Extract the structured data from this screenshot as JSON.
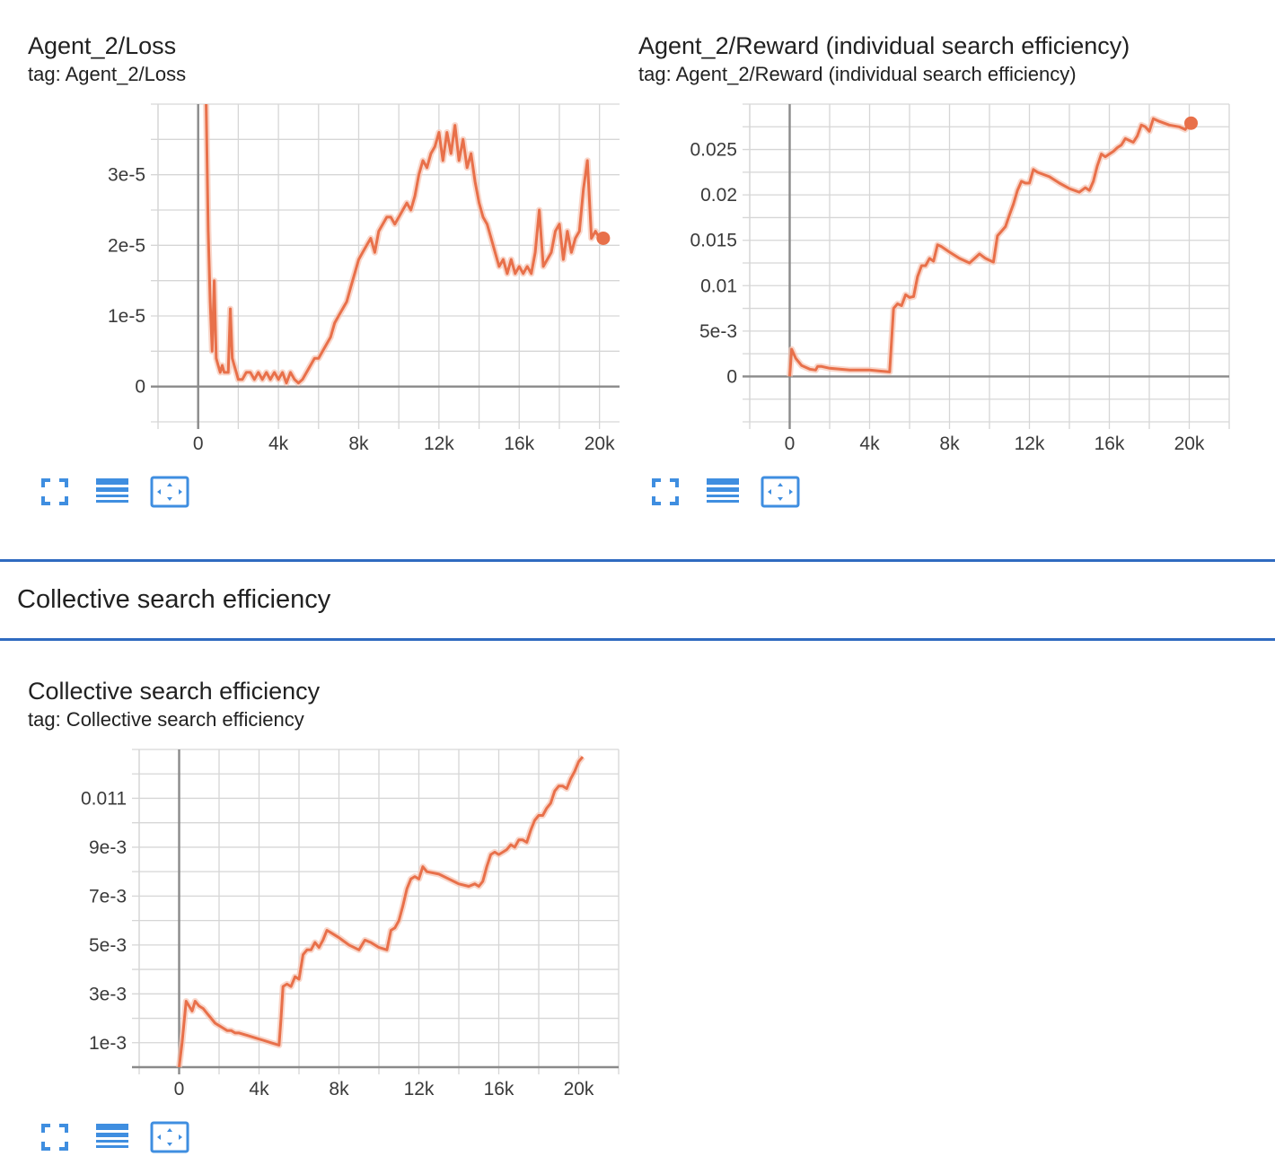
{
  "colors": {
    "accent": "#e8704a",
    "accent_light": "#f6c6b5",
    "grid": "#d6d6d6",
    "axis_zero": "#8a8a8a",
    "section_rule": "#2f6ac0",
    "toolbar_icon": "#3f8ee0"
  },
  "toolbar_icons": [
    "fullscreen-icon",
    "data-table-icon",
    "fit-domain-icon"
  ],
  "section": {
    "title": "Collective search efficiency"
  },
  "cards": [
    {
      "title": "Agent_2/Loss",
      "tag": "tag: Agent_2/Loss"
    },
    {
      "title": "Agent_2/Reward (individual search efficiency)",
      "tag": "tag: Agent_2/Reward (individual search efficiency)"
    },
    {
      "title": "Collective search efficiency",
      "tag": "tag: Collective search efficiency"
    }
  ],
  "chart_data": [
    {
      "type": "line",
      "title": "Agent_2/Loss",
      "xlim": [
        -2000,
        21000
      ],
      "ylim": [
        -5e-06,
        4e-05
      ],
      "xticks": [
        0,
        4000,
        8000,
        12000,
        16000,
        20000
      ],
      "xtick_labels": [
        "0",
        "4k",
        "8k",
        "12k",
        "16k",
        "20k"
      ],
      "yticks": [
        0,
        1e-05,
        2e-05,
        3e-05
      ],
      "ytick_labels": [
        "0",
        "1e-5",
        "2e-5",
        "3e-5"
      ],
      "grid": true,
      "series": [
        {
          "x": [
            400,
            500,
            600,
            700,
            800,
            900,
            1000,
            1100,
            1200,
            1300,
            1500,
            1600,
            1700,
            1800,
            1900,
            2000,
            2200,
            2400,
            2600,
            2800,
            3000,
            3200,
            3400,
            3600,
            3800,
            4000,
            4200,
            4400,
            4600,
            4800,
            5000,
            5200,
            5400,
            5600,
            5800,
            6000,
            6200,
            6400,
            6600,
            6800,
            7000,
            7200,
            7400,
            7600,
            7800,
            8000,
            8200,
            8400,
            8600,
            8800,
            9000,
            9200,
            9400,
            9600,
            9800,
            10000,
            10200,
            10400,
            10600,
            10800,
            11000,
            11200,
            11400,
            11600,
            11800,
            12000,
            12200,
            12400,
            12600,
            12800,
            13000,
            13200,
            13400,
            13600,
            13800,
            14000,
            14200,
            14400,
            14600,
            14800,
            15000,
            15200,
            15400,
            15600,
            15800,
            16000,
            16200,
            16400,
            16600,
            16800,
            17000,
            17200,
            17400,
            17600,
            17800,
            18000,
            18200,
            18400,
            18600,
            18800,
            19000,
            19200,
            19400,
            19600,
            19800,
            20000,
            20100
          ],
          "y": [
            4e-05,
            2.2e-05,
            1.2e-05,
            5e-06,
            1.5e-05,
            4e-06,
            3e-06,
            2e-06,
            3e-06,
            2e-06,
            2e-06,
            1.1e-05,
            4e-06,
            3e-06,
            2e-06,
            1e-06,
            1e-06,
            2e-06,
            2e-06,
            1e-06,
            2e-06,
            1e-06,
            2e-06,
            1e-06,
            2e-06,
            1e-06,
            2e-06,
            5e-07,
            2e-06,
            1e-06,
            5e-07,
            1e-06,
            2e-06,
            3e-06,
            4e-06,
            4e-06,
            5e-06,
            6e-06,
            7e-06,
            9e-06,
            1e-05,
            1.1e-05,
            1.2e-05,
            1.4e-05,
            1.6e-05,
            1.8e-05,
            1.9e-05,
            2e-05,
            2.1e-05,
            1.9e-05,
            2.2e-05,
            2.3e-05,
            2.4e-05,
            2.4e-05,
            2.3e-05,
            2.4e-05,
            2.5e-05,
            2.6e-05,
            2.5e-05,
            2.7e-05,
            3e-05,
            3.2e-05,
            3.1e-05,
            3.3e-05,
            3.4e-05,
            3.6e-05,
            3.2e-05,
            3.6e-05,
            3.3e-05,
            3.7e-05,
            3.2e-05,
            3.5e-05,
            3.1e-05,
            3.3e-05,
            2.9e-05,
            2.6e-05,
            2.4e-05,
            2.3e-05,
            2.1e-05,
            1.9e-05,
            1.7e-05,
            1.8e-05,
            1.6e-05,
            1.8e-05,
            1.6e-05,
            1.7e-05,
            1.6e-05,
            1.7e-05,
            1.6e-05,
            1.9e-05,
            2.5e-05,
            1.7e-05,
            1.8e-05,
            1.9e-05,
            2.2e-05,
            2.3e-05,
            1.8e-05,
            2.2e-05,
            1.9e-05,
            2.1e-05,
            2.2e-05,
            2.8e-05,
            3.2e-05,
            2.1e-05,
            2.2e-05,
            2.1e-05,
            2.1e-05
          ]
        }
      ]
    },
    {
      "type": "line",
      "title": "Agent_2/Reward (individual search efficiency)",
      "xlim": [
        -2000,
        22000
      ],
      "ylim": [
        -0.005,
        0.03
      ],
      "xticks": [
        0,
        4000,
        8000,
        12000,
        16000,
        20000
      ],
      "xtick_labels": [
        "0",
        "4k",
        "8k",
        "12k",
        "16k",
        "20k"
      ],
      "yticks": [
        0,
        0.005,
        0.01,
        0.015,
        0.02,
        0.025
      ],
      "ytick_labels": [
        "0",
        "5e-3",
        "0.01",
        "0.015",
        "0.02",
        "0.025"
      ],
      "grid": true,
      "series": [
        {
          "x": [
            0,
            100,
            300,
            600,
            1000,
            1300,
            1400,
            1600,
            2000,
            2500,
            3000,
            3500,
            4000,
            4500,
            5000,
            5100,
            5200,
            5400,
            5600,
            5800,
            6000,
            6200,
            6400,
            6600,
            6800,
            7000,
            7200,
            7400,
            7600,
            8000,
            8500,
            9000,
            9500,
            9800,
            10000,
            10200,
            10400,
            10600,
            10800,
            11000,
            11200,
            11400,
            11600,
            11800,
            12000,
            12200,
            12400,
            13000,
            13500,
            14000,
            14500,
            14800,
            15000,
            15200,
            15400,
            15600,
            15800,
            16000,
            16200,
            16400,
            16600,
            16800,
            17000,
            17200,
            17400,
            17600,
            17800,
            18000,
            18200,
            18500,
            19000,
            19500,
            19800,
            20000
          ],
          "y": [
            0,
            0.003,
            0.002,
            0.0012,
            0.0008,
            0.0007,
            0.0011,
            0.0011,
            0.0009,
            0.0008,
            0.0007,
            0.0007,
            0.0007,
            0.0006,
            0.0005,
            0.004,
            0.0075,
            0.008,
            0.0078,
            0.009,
            0.0087,
            0.0088,
            0.011,
            0.0122,
            0.0122,
            0.013,
            0.0127,
            0.0145,
            0.0143,
            0.0137,
            0.013,
            0.0125,
            0.0135,
            0.013,
            0.0128,
            0.0126,
            0.0155,
            0.016,
            0.0165,
            0.0178,
            0.019,
            0.0205,
            0.0215,
            0.0213,
            0.0213,
            0.0228,
            0.0225,
            0.022,
            0.0213,
            0.0207,
            0.0203,
            0.0208,
            0.0205,
            0.0215,
            0.0232,
            0.0245,
            0.0242,
            0.0245,
            0.0248,
            0.0252,
            0.0255,
            0.0262,
            0.026,
            0.0258,
            0.0265,
            0.0277,
            0.0275,
            0.027,
            0.0284,
            0.0281,
            0.0277,
            0.0275,
            0.0272,
            0.0279
          ]
        }
      ]
    },
    {
      "type": "line",
      "title": "Collective search efficiency",
      "xlim": [
        -2000,
        22000
      ],
      "ylim": [
        0,
        0.013
      ],
      "xticks": [
        0,
        4000,
        8000,
        12000,
        16000,
        20000
      ],
      "xtick_labels": [
        "0",
        "4k",
        "8k",
        "12k",
        "16k",
        "20k"
      ],
      "yticks": [
        0.001,
        0.003,
        0.005,
        0.007,
        0.009,
        0.011
      ],
      "ytick_labels": [
        "1e-3",
        "3e-3",
        "5e-3",
        "7e-3",
        "9e-3",
        "0.011"
      ],
      "grid": true,
      "series": [
        {
          "x": [
            0,
            150,
            350,
            500,
            650,
            800,
            1000,
            1200,
            1400,
            1600,
            1800,
            2000,
            2200,
            2400,
            2600,
            2800,
            3000,
            3400,
            3800,
            4200,
            4600,
            5000,
            5100,
            5200,
            5400,
            5600,
            5800,
            6000,
            6200,
            6400,
            6600,
            6800,
            7000,
            7200,
            7400,
            7600,
            8000,
            8500,
            9000,
            9300,
            9600,
            10000,
            10400,
            10600,
            10800,
            11000,
            11200,
            11400,
            11600,
            11800,
            12000,
            12200,
            12400,
            13000,
            13500,
            14000,
            14500,
            14800,
            15000,
            15200,
            15400,
            15600,
            15800,
            16000,
            16200,
            16400,
            16600,
            16800,
            17000,
            17200,
            17400,
            17600,
            17800,
            18000,
            18200,
            18400,
            18600,
            18800,
            19000,
            19200,
            19400,
            19600,
            19800,
            20000,
            20200
          ],
          "y": [
            0,
            0.001,
            0.0027,
            0.0025,
            0.0023,
            0.0027,
            0.0025,
            0.0024,
            0.0022,
            0.002,
            0.0018,
            0.0017,
            0.0016,
            0.0015,
            0.0015,
            0.0014,
            0.0014,
            0.0013,
            0.0012,
            0.0011,
            0.001,
            0.0009,
            0.002,
            0.0033,
            0.0034,
            0.0033,
            0.0037,
            0.0036,
            0.0046,
            0.0048,
            0.0048,
            0.0051,
            0.0049,
            0.0052,
            0.0056,
            0.0055,
            0.0053,
            0.005,
            0.0048,
            0.0052,
            0.0051,
            0.0049,
            0.0048,
            0.0056,
            0.0057,
            0.006,
            0.0066,
            0.0073,
            0.0077,
            0.0078,
            0.0077,
            0.0082,
            0.008,
            0.0079,
            0.0077,
            0.0075,
            0.0074,
            0.0075,
            0.0074,
            0.0076,
            0.0082,
            0.0087,
            0.0088,
            0.0087,
            0.0088,
            0.0089,
            0.0091,
            0.009,
            0.0093,
            0.0093,
            0.0092,
            0.0097,
            0.0101,
            0.0103,
            0.0103,
            0.0106,
            0.0108,
            0.0113,
            0.0115,
            0.0115,
            0.0114,
            0.0118,
            0.0121,
            0.0125,
            0.0127
          ]
        }
      ]
    }
  ]
}
